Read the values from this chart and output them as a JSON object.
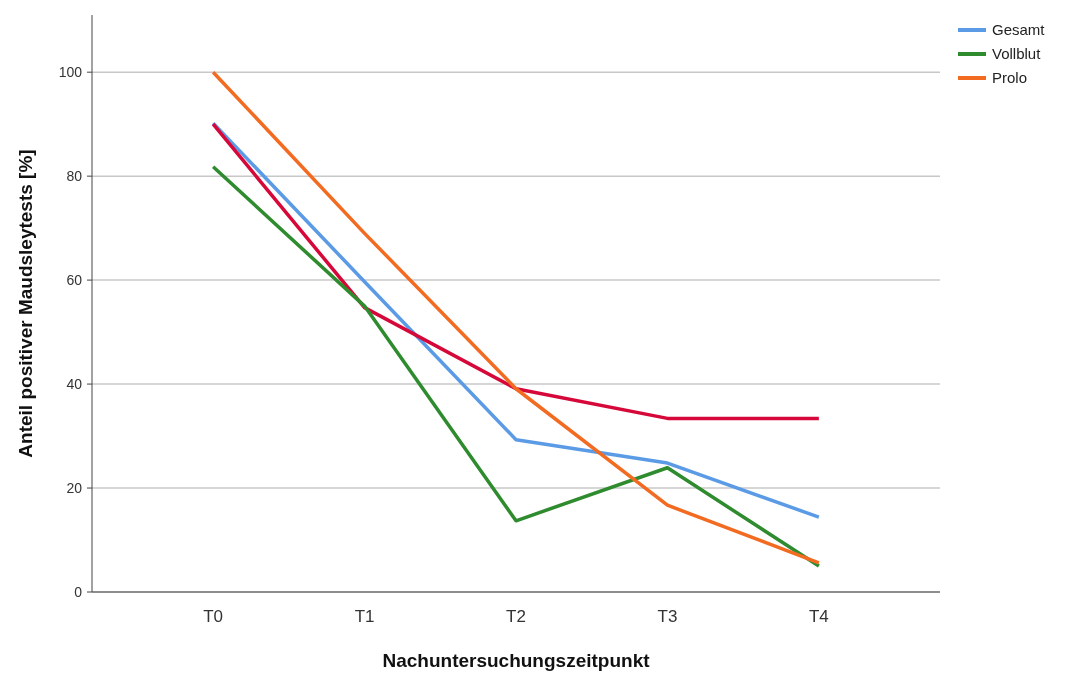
{
  "chart_data": {
    "type": "line",
    "xlabel": "Nachuntersuchungszeitpunkt",
    "ylabel": "Anteil positiver Maudsleytests [%]",
    "categories": [
      "T0",
      "T1",
      "T2",
      "T3",
      "T4"
    ],
    "ylim": [
      0,
      111
    ],
    "yticks": [
      0,
      20,
      40,
      60,
      80,
      100
    ],
    "grid": "y",
    "legend": "top right",
    "line_style": "solid",
    "marker": "none",
    "series": [
      {
        "name": "Gesamt",
        "color": "#5b9be6",
        "values": [
          90.2,
          59.7,
          29.3,
          24.8,
          14.4
        ]
      },
      {
        "color": "#d6083a",
        "values": [
          90,
          54.7,
          39.1,
          33.4,
          33.4
        ]
      },
      {
        "name": "Vollblut",
        "color": "#2e8b2e",
        "values": [
          81.8,
          55,
          13.7,
          23.9,
          5
        ]
      },
      {
        "name": "Prolo",
        "color": "#f26b21",
        "values": [
          100,
          69,
          39.1,
          16.7,
          5.6
        ]
      }
    ]
  }
}
